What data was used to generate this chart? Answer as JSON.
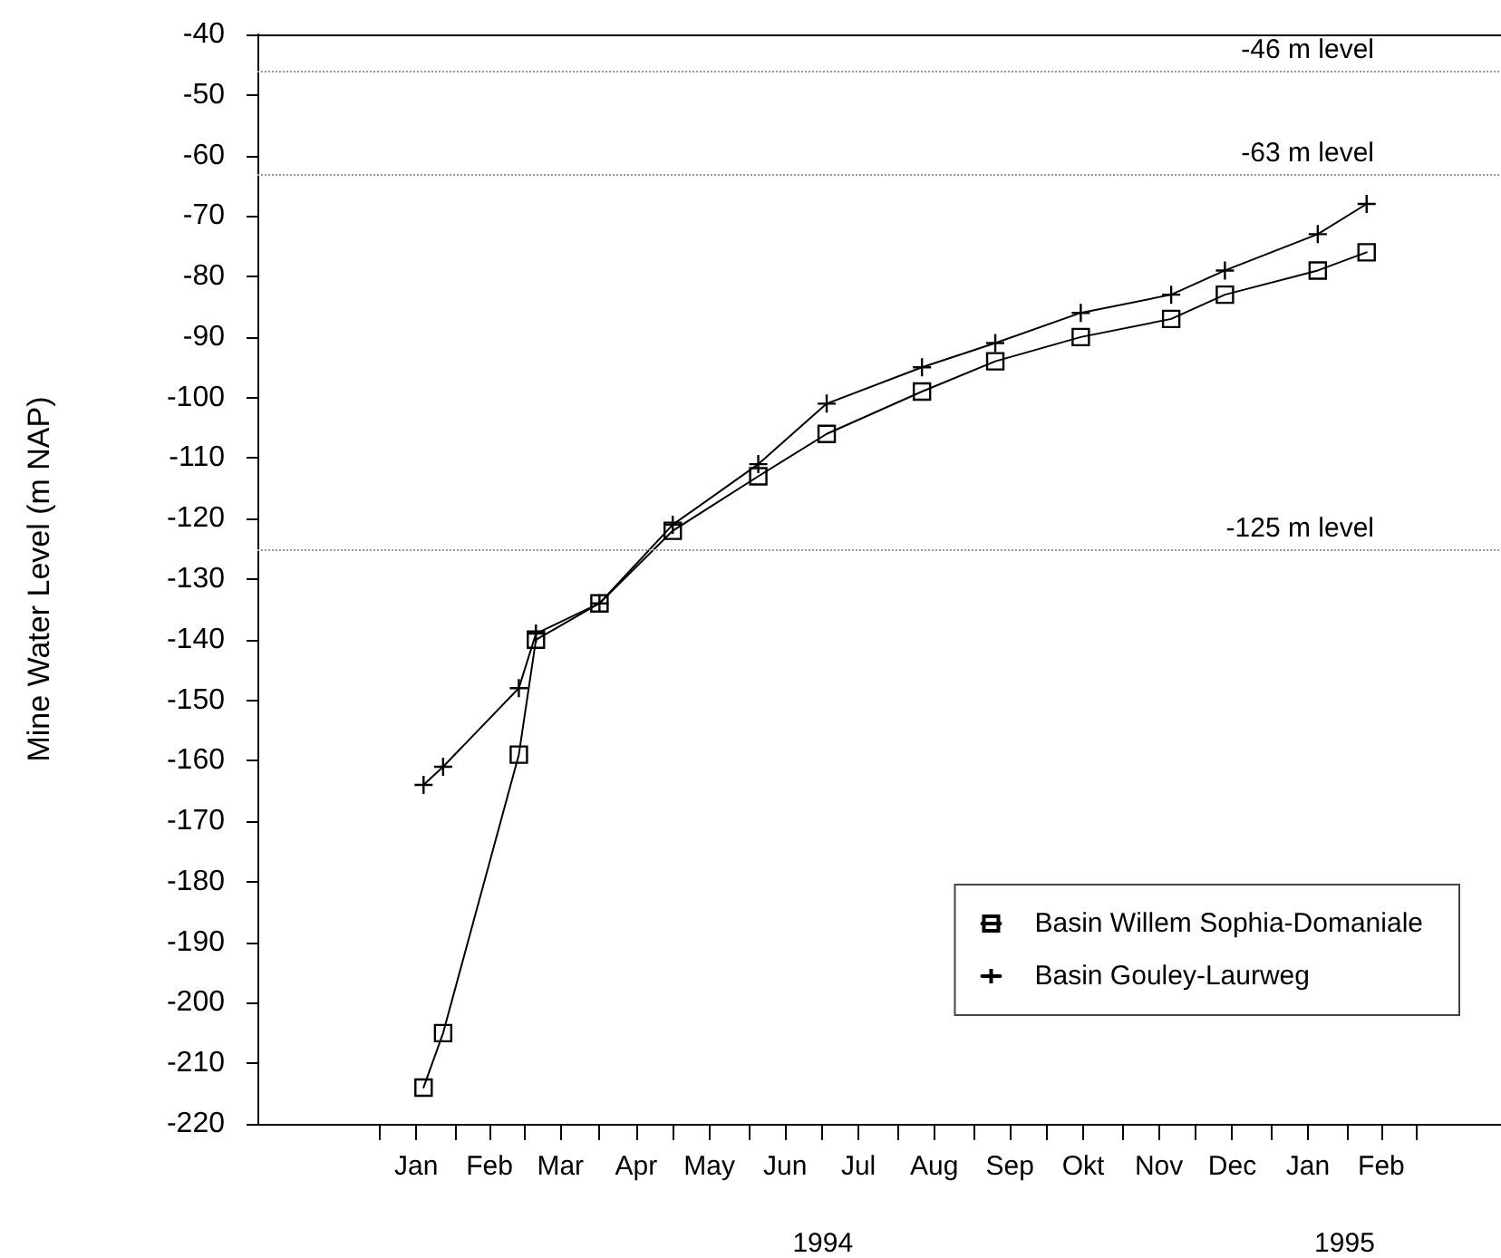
{
  "chart_data": {
    "type": "line",
    "ylabel": "Mine Water Level (m NAP)",
    "x": [
      "1994-01-19",
      "1994-01-27",
      "1994-02-27",
      "1994-03-06",
      "1994-04-01",
      "1994-05-01",
      "1994-06-05",
      "1994-07-03",
      "1994-08-11",
      "1994-09-10",
      "1994-10-15",
      "1994-11-21",
      "1994-12-13",
      "1995-01-20",
      "1995-02-09"
    ],
    "series": [
      {
        "name": "Basin Willem Sophia-Domaniale",
        "color": "#000000",
        "marker": "square",
        "values": [
          -214,
          -205,
          -159,
          -140,
          -134,
          -122,
          -113,
          -106,
          -99,
          -94,
          -90,
          -87,
          -83,
          -79,
          -76
        ]
      },
      {
        "name": "Basin Gouley-Laurweg",
        "color": "#000000",
        "marker": "cross",
        "values": [
          -164,
          -161,
          -148,
          -139,
          -134,
          -121,
          -111,
          -101,
          -95,
          -91,
          -86,
          -83,
          -79,
          -73,
          -68
        ]
      }
    ],
    "xlim": [
      "1993-11-12",
      "1995-04-05"
    ],
    "xticks": [
      {
        "value": "1994-01-01",
        "label": null
      },
      {
        "value": "1994-01-16",
        "label": "Jan"
      },
      {
        "value": "1994-02-01",
        "label": null
      },
      {
        "value": "1994-02-15",
        "label": "Feb"
      },
      {
        "value": "1994-03-01",
        "label": null
      },
      {
        "value": "1994-03-16",
        "label": "Mar"
      },
      {
        "value": "1994-04-01",
        "label": null
      },
      {
        "value": "1994-04-16",
        "label": "Apr"
      },
      {
        "value": "1994-05-01",
        "label": null
      },
      {
        "value": "1994-05-16",
        "label": "May"
      },
      {
        "value": "1994-06-01",
        "label": null
      },
      {
        "value": "1994-06-16",
        "label": "Jun"
      },
      {
        "value": "1994-07-01",
        "label": null
      },
      {
        "value": "1994-07-16",
        "label": "Jul"
      },
      {
        "value": "1994-08-01",
        "label": null
      },
      {
        "value": "1994-08-16",
        "label": "Aug"
      },
      {
        "value": "1994-09-01",
        "label": null
      },
      {
        "value": "1994-09-16",
        "label": "Sep"
      },
      {
        "value": "1994-10-01",
        "label": null
      },
      {
        "value": "1994-10-16",
        "label": "Okt"
      },
      {
        "value": "1994-11-01",
        "label": null
      },
      {
        "value": "1994-11-16",
        "label": "Nov"
      },
      {
        "value": "1994-12-01",
        "label": null
      },
      {
        "value": "1994-12-16",
        "label": "Dec"
      },
      {
        "value": "1995-01-01",
        "label": null
      },
      {
        "value": "1995-01-16",
        "label": "Jan"
      },
      {
        "value": "1995-02-01",
        "label": null
      },
      {
        "value": "1995-02-15",
        "label": "Feb"
      },
      {
        "value": "1995-03-01",
        "label": null
      }
    ],
    "ylim": [
      -220,
      -40
    ],
    "yticks": [
      -220,
      -210,
      -200,
      -190,
      -180,
      -170,
      -160,
      -150,
      -140,
      -130,
      -120,
      -110,
      -100,
      -90,
      -80,
      -70,
      -60,
      -50,
      -40
    ],
    "ref_lines": [
      {
        "axis": "y",
        "value": -46,
        "label": "-46 m level",
        "color": "#999999",
        "line_style": "dotted"
      },
      {
        "axis": "y",
        "value": -63,
        "label": "-63 m level",
        "color": "#999999",
        "line_style": "dotted"
      },
      {
        "axis": "y",
        "value": -125,
        "label": "-125 m level",
        "color": "#999999",
        "line_style": "dotted"
      }
    ],
    "annotations": [
      "1994",
      "1995"
    ],
    "legend": "bottom right",
    "line_style": "solid"
  }
}
